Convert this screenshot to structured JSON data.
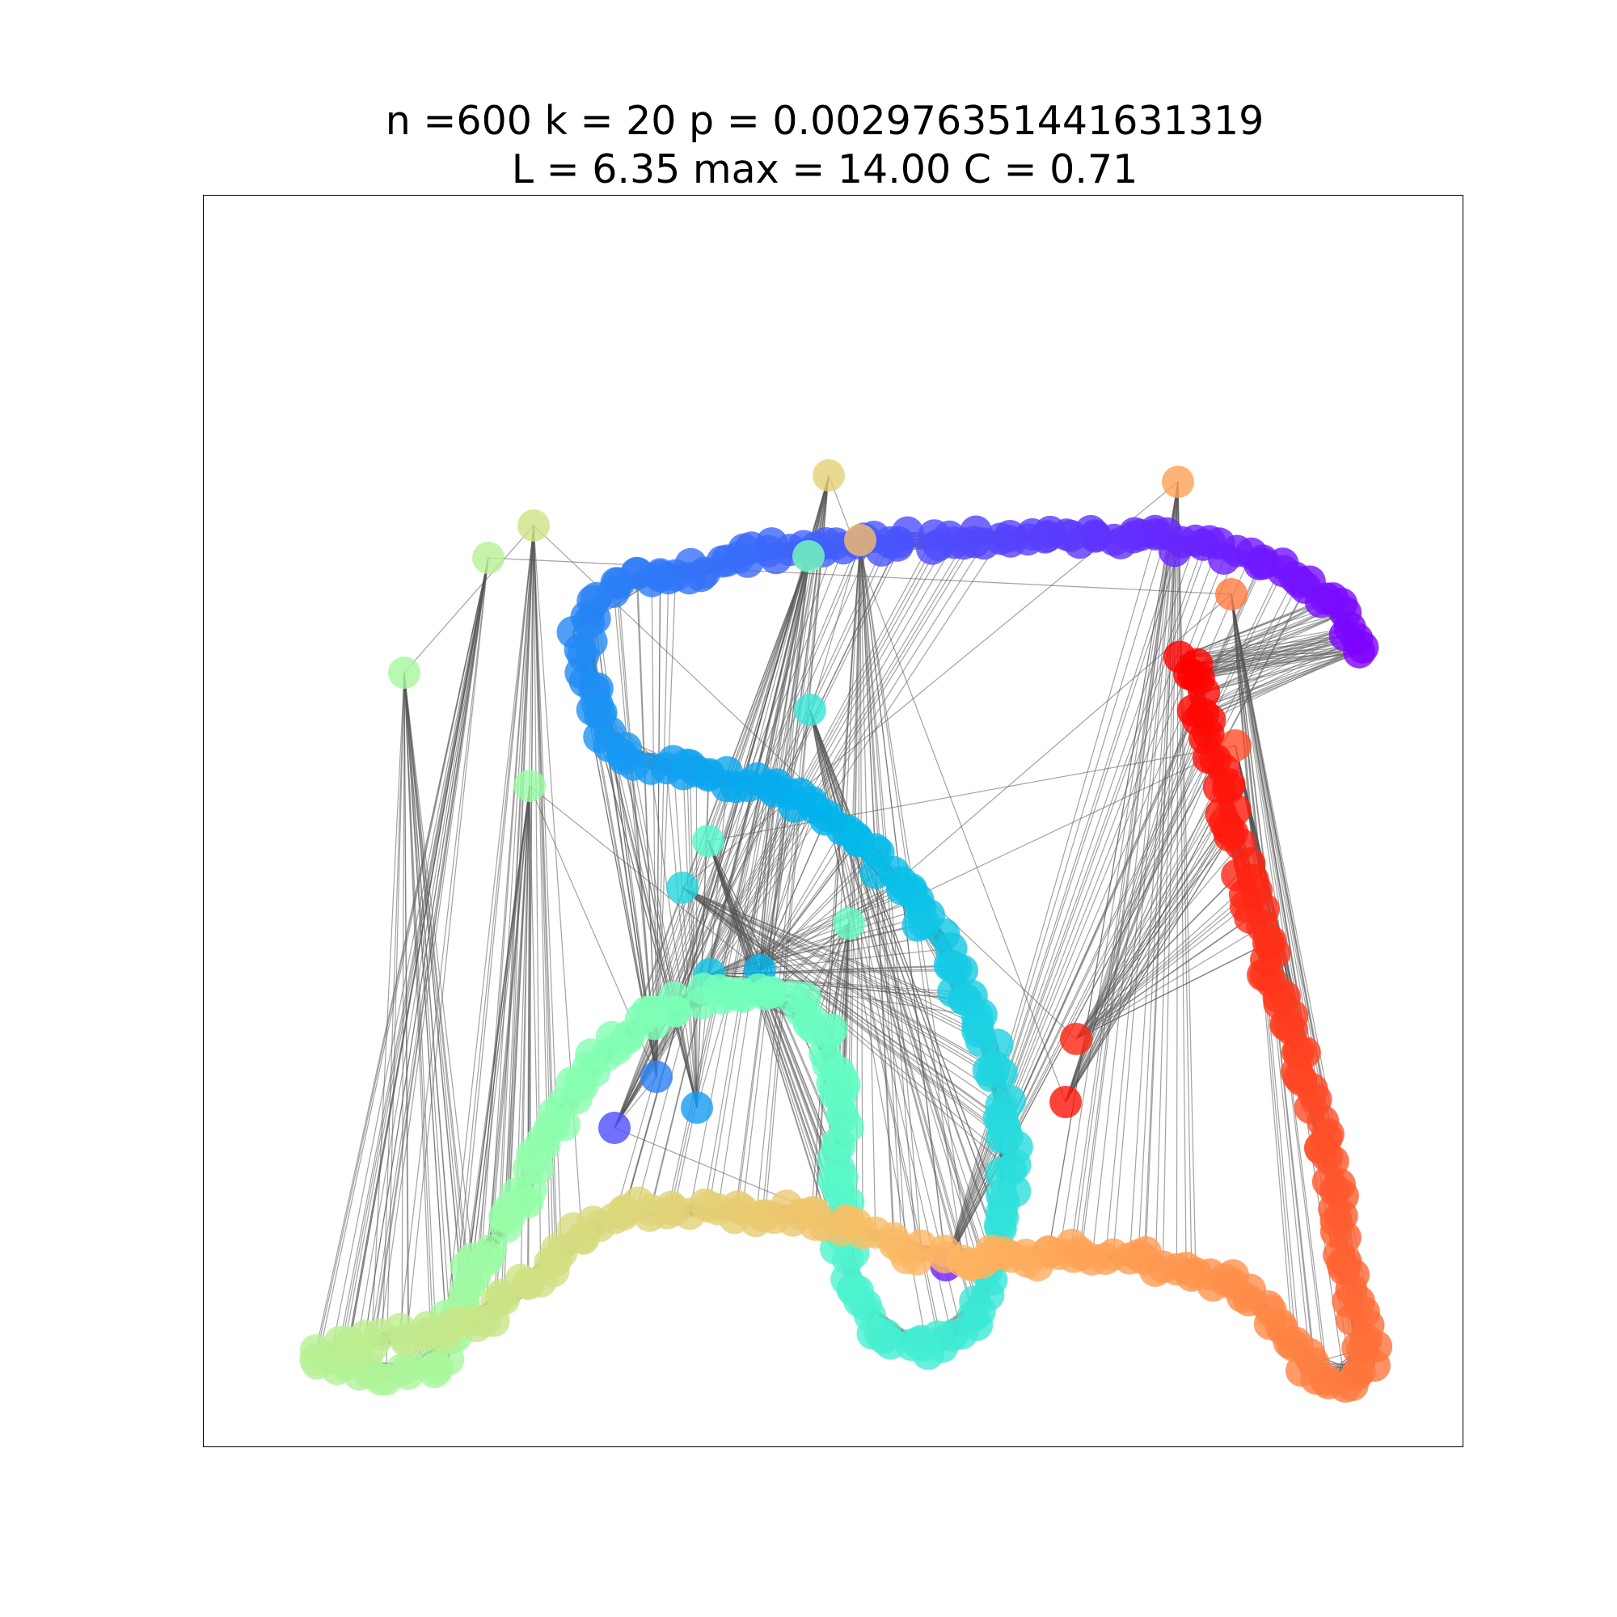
{
  "title": {
    "line1": "n =600 k = 20 p = 0.002976351441631319",
    "line2": "L = 6.35 max = 14.00 C = 0.71"
  },
  "graph": {
    "node_count": 600,
    "k": 20,
    "p": 0.002976351441631319,
    "avg_path_length": 6.35,
    "max_path_length": 14.0,
    "clustering": 0.71,
    "colormap": "rainbow",
    "edge_color": "#555555"
  }
}
